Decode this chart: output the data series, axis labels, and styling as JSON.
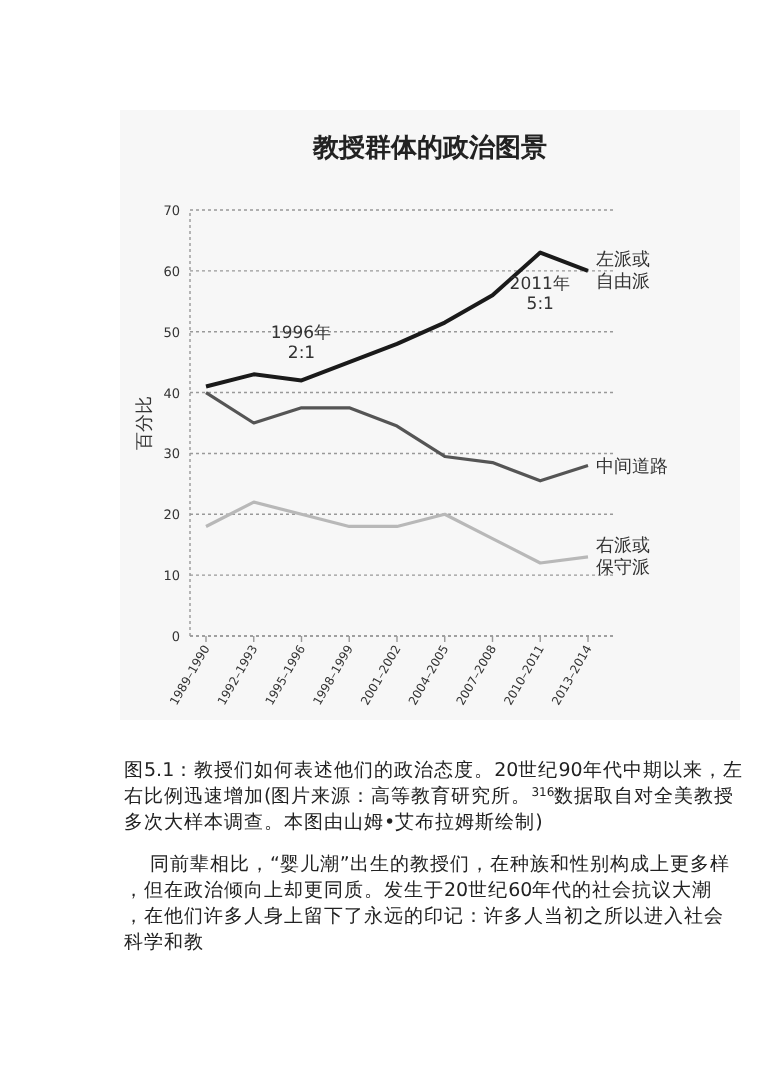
{
  "chart_data": {
    "type": "line",
    "title": "教授群体的政治图景",
    "ylabel": "百分比",
    "categories": [
      "1989–1990",
      "1992–1993",
      "1995–1996",
      "1998–1999",
      "2001–2002",
      "2004–2005",
      "2007–2008",
      "2010–2011",
      "2013–2014"
    ],
    "series": [
      {
        "name": "左派或自由派",
        "color": "#1a1a1a",
        "values": [
          41,
          43,
          42,
          45,
          48,
          51.5,
          56,
          63,
          60
        ]
      },
      {
        "name": "中间道路",
        "color": "#555555",
        "values": [
          40,
          35,
          37.5,
          37.5,
          34.5,
          29.5,
          28.5,
          25.5,
          28
        ]
      },
      {
        "name": "右派或保守派",
        "color": "#b8b8b8",
        "values": [
          18,
          22,
          20,
          18,
          18,
          20,
          16,
          12,
          13
        ]
      }
    ],
    "ylim": [
      0,
      70
    ],
    "yticks": [
      0,
      10,
      20,
      30,
      40,
      50,
      60,
      70
    ],
    "grid": "y",
    "marker": "none",
    "line_style": "solid",
    "annotations": [
      "1996年\n2:1",
      "2011年\n5:1",
      "图5.1：教授们如何表述他们的政治态度。20世纪90年代中期以来，左右比例迅速增加(图片来源：高等教育研究所。$^{316}$数据取自对全美教授多次大样本调查。本图由山姆•艾布拉姆斯绘制)",
      "同前辈相比，“婴儿潮”出生的教授们，在种族和性别构成上更多样，但在政治倾向上却更同质。发生于20世纪60年代的社会抗议大潮，在他们许多人身上留下了永远的印记：许多人当初之所以进入社会科学和教"
    ]
  }
}
